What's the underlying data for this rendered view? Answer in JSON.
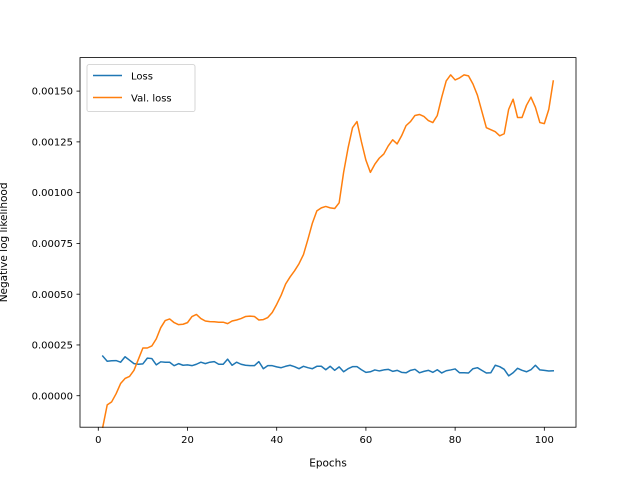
{
  "chart_data": {
    "type": "line",
    "title": "",
    "xlabel": "Epochs",
    "ylabel": "Negative log likelihood",
    "xlim": [
      -4.1,
      107.1
    ],
    "ylim": [
      -0.000155,
      0.001665
    ],
    "xticks": [
      0,
      20,
      40,
      60,
      80,
      100
    ],
    "xtick_labels": [
      "0",
      "20",
      "40",
      "60",
      "80",
      "100"
    ],
    "yticks": [
      0,
      0.00025,
      0.0005,
      0.00075,
      0.001,
      0.00125,
      0.0015
    ],
    "ytick_labels": [
      "0.00000",
      "0.00025",
      "0.00050",
      "0.00075",
      "0.00100",
      "0.00125",
      "0.00150"
    ],
    "grid": false,
    "legend_position": "upper-left",
    "series": [
      {
        "name": "Loss",
        "color": "#1f77b4",
        "x": [
          1,
          2,
          3,
          4,
          5,
          6,
          7,
          8,
          9,
          10,
          11,
          12,
          13,
          14,
          15,
          16,
          17,
          18,
          19,
          20,
          21,
          22,
          23,
          24,
          25,
          26,
          27,
          28,
          29,
          30,
          31,
          32,
          33,
          34,
          35,
          36,
          37,
          38,
          39,
          40,
          41,
          42,
          43,
          44,
          45,
          46,
          47,
          48,
          49,
          50,
          51,
          52,
          53,
          54,
          55,
          56,
          57,
          58,
          59,
          60,
          61,
          62,
          63,
          64,
          65,
          66,
          67,
          68,
          69,
          70,
          71,
          72,
          73,
          74,
          75,
          76,
          77,
          78,
          79,
          80,
          81,
          82,
          83,
          84,
          85,
          86,
          87,
          88,
          89,
          90,
          91,
          92,
          93,
          94,
          95,
          96,
          97,
          98,
          99,
          100,
          101,
          102
        ],
        "y": [
          0.000195,
          0.00017,
          0.000172,
          0.000173,
          0.000165,
          0.000192,
          0.000175,
          0.000158,
          0.000155,
          0.000157,
          0.000185,
          0.000183,
          0.000152,
          0.000167,
          0.000165,
          0.000165,
          0.000148,
          0.000158,
          0.00015,
          0.000152,
          0.000148,
          0.000155,
          0.000165,
          0.000158,
          0.000165,
          0.000168,
          0.000155,
          0.000155,
          0.00018,
          0.00015,
          0.000165,
          0.000155,
          0.00015,
          0.000148,
          0.000148,
          0.000168,
          0.000133,
          0.000148,
          0.000148,
          0.000142,
          0.000138,
          0.000145,
          0.00015,
          0.000143,
          0.000133,
          0.000145,
          0.000138,
          0.000133,
          0.000145,
          0.000145,
          0.000128,
          0.000145,
          0.000125,
          0.000142,
          0.000118,
          0.000133,
          0.000143,
          0.000143,
          0.000128,
          0.000115,
          0.000118,
          0.000127,
          0.000122,
          0.000127,
          0.00013,
          0.00012,
          0.000125,
          0.000115,
          0.000113,
          0.000125,
          0.00013,
          0.000113,
          0.00012,
          0.000125,
          0.000115,
          0.000128,
          0.000112,
          0.000123,
          0.000127,
          0.000132,
          0.000113,
          0.000113,
          0.000112,
          0.000133,
          0.000138,
          0.000125,
          0.000112,
          0.000113,
          0.00015,
          0.000143,
          0.00013,
          9.8e-05,
          0.000113,
          0.000135,
          0.000125,
          0.000118,
          0.000128,
          0.00015,
          0.000127,
          0.000125,
          0.000122,
          0.000123
        ]
      },
      {
        "name": "Val. loss",
        "color": "#ff7f0e",
        "x": [
          1,
          2,
          3,
          4,
          5,
          6,
          7,
          8,
          9,
          10,
          11,
          12,
          13,
          14,
          15,
          16,
          17,
          18,
          19,
          20,
          21,
          22,
          23,
          24,
          25,
          26,
          27,
          28,
          29,
          30,
          31,
          32,
          33,
          34,
          35,
          36,
          37,
          38,
          39,
          40,
          41,
          42,
          43,
          44,
          45,
          46,
          47,
          48,
          49,
          50,
          51,
          52,
          53,
          54,
          55,
          56,
          57,
          58,
          59,
          60,
          61,
          62,
          63,
          64,
          65,
          66,
          67,
          68,
          69,
          70,
          71,
          72,
          73,
          74,
          75,
          76,
          77,
          78,
          79,
          80,
          81,
          82,
          83,
          84,
          85,
          86,
          87,
          88,
          89,
          90,
          91,
          92,
          93,
          94,
          95,
          96,
          97,
          98,
          99,
          100,
          101,
          102
        ],
        "y": [
          -0.000155,
          -4.5e-05,
          -3e-05,
          1e-05,
          6e-05,
          8.5e-05,
          9.5e-05,
          0.000125,
          0.00018,
          0.000235,
          0.000235,
          0.000245,
          0.00028,
          0.000335,
          0.00037,
          0.000378,
          0.00036,
          0.00035,
          0.000352,
          0.00036,
          0.00039,
          0.0004,
          0.00038,
          0.000368,
          0.000365,
          0.000364,
          0.000362,
          0.000362,
          0.000355,
          0.000368,
          0.000373,
          0.00038,
          0.00039,
          0.000392,
          0.00039,
          0.000373,
          0.000375,
          0.000385,
          0.00041,
          0.00045,
          0.000495,
          0.00055,
          0.000585,
          0.000615,
          0.00065,
          0.000695,
          0.00077,
          0.00085,
          0.00091,
          0.000925,
          0.000932,
          0.000925,
          0.000922,
          0.00095,
          0.0011,
          0.00122,
          0.00132,
          0.00135,
          0.00125,
          0.00116,
          0.0011,
          0.00114,
          0.00117,
          0.00119,
          0.00123,
          0.00126,
          0.00124,
          0.00128,
          0.00133,
          0.00135,
          0.00138,
          0.001385,
          0.001375,
          0.001355,
          0.001345,
          0.00138,
          0.00147,
          0.00155,
          0.00158,
          0.001555,
          0.001565,
          0.00158,
          0.001575,
          0.001535,
          0.00148,
          0.0014,
          0.00132,
          0.00131,
          0.0013,
          0.00128,
          0.00129,
          0.00141,
          0.00146,
          0.00137,
          0.00137,
          0.00143,
          0.00147,
          0.00142,
          0.001345,
          0.00134,
          0.00141,
          0.00155
        ]
      }
    ]
  }
}
